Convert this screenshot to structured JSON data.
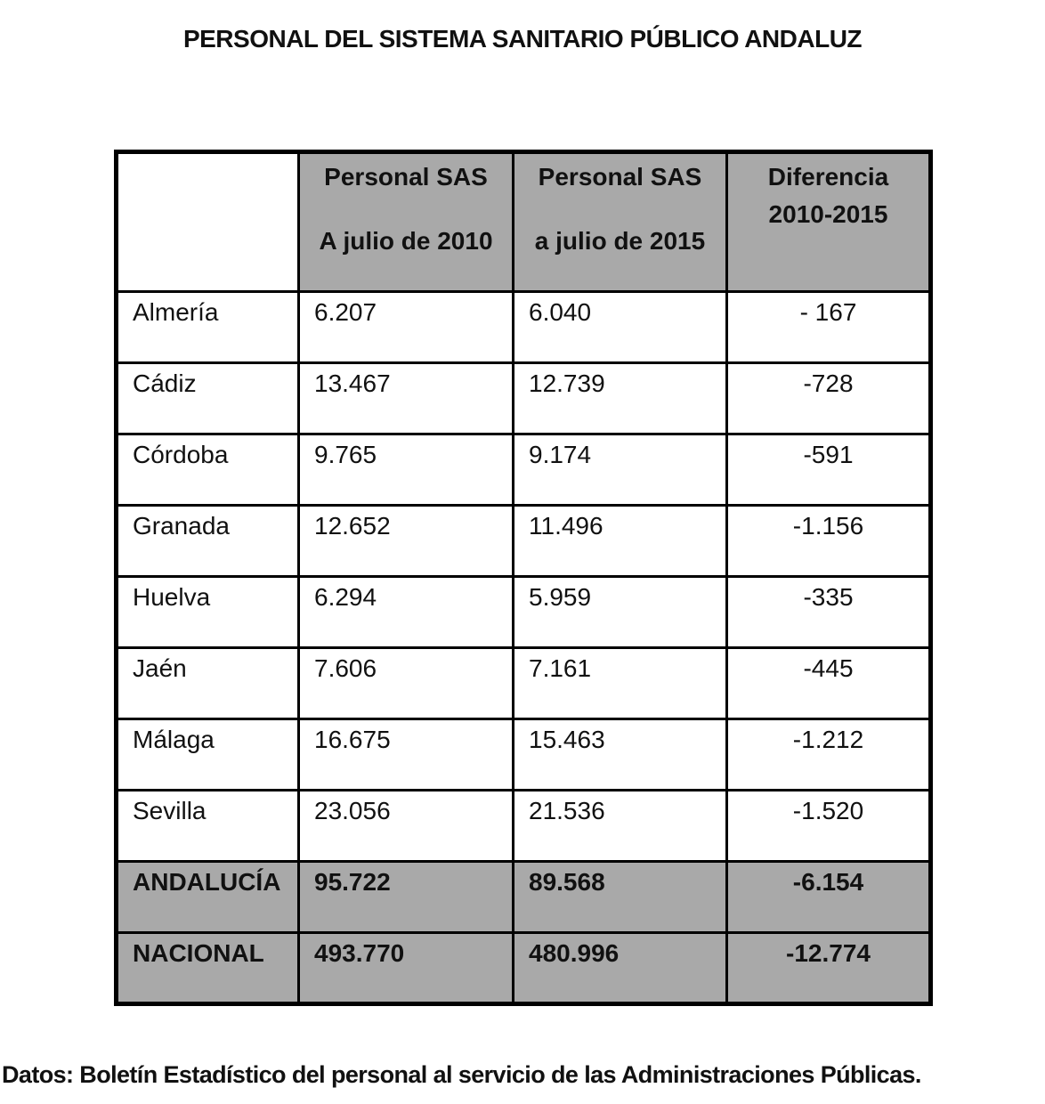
{
  "page": {
    "title": "PERSONAL DEL SISTEMA SANITARIO PÚBLICO ANDALUZ",
    "source_note": "Datos: Boletín Estadístico del personal al servicio de las Administraciones Públicas."
  },
  "colors": {
    "header_bg": "#a9a9a9",
    "summary_row_bg": "#a9a9a9",
    "border": "#000000",
    "page_bg": "#ffffff",
    "text": "#111111"
  },
  "table": {
    "headers": [
      {
        "line1": "",
        "line2": ""
      },
      {
        "line1": "Personal SAS",
        "line2": "A julio de 2010"
      },
      {
        "line1": "Personal SAS",
        "line2": "a julio de 2015"
      },
      {
        "line1": "Diferencia",
        "line2": "2010-2015"
      }
    ],
    "rows": [
      {
        "label": "Almería",
        "sas2010": "6.207",
        "sas2015": "6.040",
        "diff": "- 167",
        "summary": false
      },
      {
        "label": "Cádiz",
        "sas2010": "13.467",
        "sas2015": "12.739",
        "diff": "-728",
        "summary": false
      },
      {
        "label": "Córdoba",
        "sas2010": "9.765",
        "sas2015": "9.174",
        "diff": "-591",
        "summary": false
      },
      {
        "label": "Granada",
        "sas2010": "12.652",
        "sas2015": "11.496",
        "diff": "-1.156",
        "summary": false
      },
      {
        "label": "Huelva",
        "sas2010": "6.294",
        "sas2015": "5.959",
        "diff": "-335",
        "summary": false
      },
      {
        "label": "Jaén",
        "sas2010": "7.606",
        "sas2015": "7.161",
        "diff": "-445",
        "summary": false
      },
      {
        "label": "Málaga",
        "sas2010": "16.675",
        "sas2015": "15.463",
        "diff": "-1.212",
        "summary": false
      },
      {
        "label": "Sevilla",
        "sas2010": "23.056",
        "sas2015": "21.536",
        "diff": "-1.520",
        "summary": false
      },
      {
        "label": "ANDALUCÍA",
        "sas2010": "95.722",
        "sas2015": "89.568",
        "diff": "-6.154",
        "summary": true
      },
      {
        "label": "NACIONAL",
        "sas2010": "493.770",
        "sas2015": "480.996",
        "diff": "-12.774",
        "summary": true
      }
    ]
  }
}
